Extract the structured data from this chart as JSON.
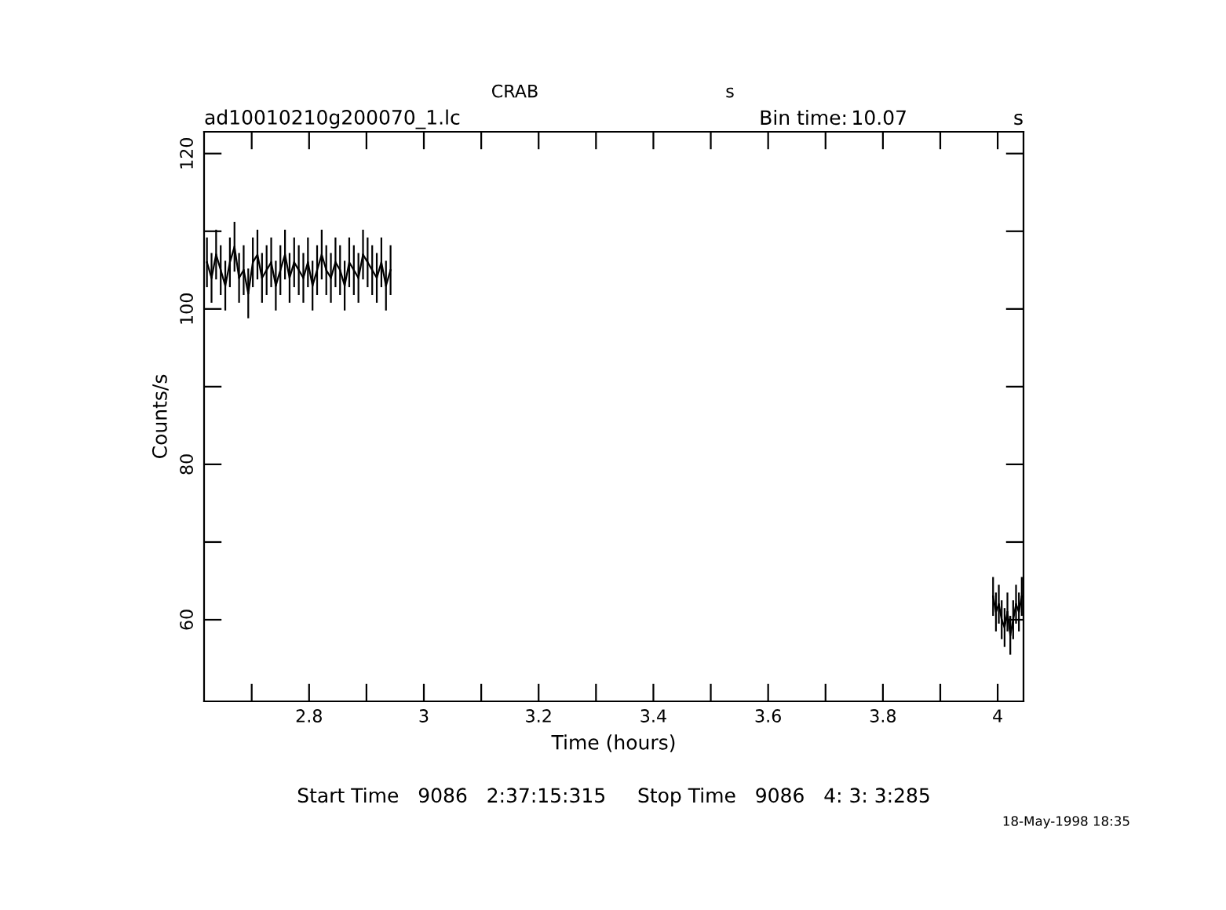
{
  "chart_data": {
    "type": "line",
    "title": "CRAB",
    "subtitle": "ad10010210g200070_1.lc",
    "xlabel": "Time (hours)",
    "ylabel": "Counts/s",
    "annotations": [
      "s",
      "Bin time:",
      "10.07",
      "s",
      "Start Time   9086   2:37:15:315     Stop Time   9086   4: 3: 3:285",
      "18-May-1998 18:35"
    ],
    "xlim": [
      2.617,
      4.045
    ],
    "ylim": [
      49.5,
      122.8
    ],
    "xticks": [
      {
        "value": 2.7,
        "label": null
      },
      2.8,
      {
        "value": 2.9,
        "label": null
      },
      3,
      {
        "value": 3.1,
        "label": null
      },
      3.2,
      {
        "value": 3.3,
        "label": null
      },
      3.4,
      {
        "value": 3.5,
        "label": null
      },
      3.6,
      {
        "value": 3.7,
        "label": null
      },
      3.8,
      {
        "value": 3.9,
        "label": null
      },
      4
    ],
    "yticks": [
      60,
      {
        "value": 70,
        "label": null
      },
      80,
      {
        "value": 90,
        "label": null
      },
      100,
      {
        "value": 110,
        "label": null
      },
      120
    ],
    "marker": "none",
    "legend": false,
    "grid": false,
    "series": [
      {
        "color": "#000000",
        "x": [
          2.622,
          2.63,
          2.638,
          2.646,
          2.654,
          2.662,
          2.67,
          2.678,
          2.686,
          2.694,
          2.702,
          2.71,
          2.718,
          2.726,
          2.734,
          2.742,
          2.75,
          2.758,
          2.766,
          2.774,
          2.782,
          2.79,
          2.798,
          2.806,
          2.814,
          2.822,
          2.83,
          2.838,
          2.846,
          2.854,
          2.862,
          2.87,
          2.878,
          2.886,
          2.894,
          2.902,
          2.91,
          2.918,
          2.926,
          2.934,
          2.942
        ],
        "values": [
          106,
          104,
          107,
          105,
          103,
          106,
          108,
          104,
          105,
          102,
          106,
          107,
          104,
          105,
          106,
          103,
          105,
          107,
          104,
          106,
          105,
          104,
          106,
          103,
          105,
          107,
          105,
          104,
          106,
          105,
          103,
          106,
          105,
          104,
          107,
          106,
          105,
          104,
          106,
          103,
          105
        ],
        "errors": [
          3.2,
          3.2,
          3.2,
          3.2,
          3.2,
          3.2,
          3.2,
          3.2,
          3.2,
          3.2,
          3.2,
          3.2,
          3.2,
          3.2,
          3.2,
          3.2,
          3.2,
          3.2,
          3.2,
          3.2,
          3.2,
          3.2,
          3.2,
          3.2,
          3.2,
          3.2,
          3.2,
          3.2,
          3.2,
          3.2,
          3.2,
          3.2,
          3.2,
          3.2,
          3.2,
          3.2,
          3.2,
          3.2,
          3.2,
          3.2,
          3.2
        ],
        "xerrors": [
          0.0014,
          0.0014,
          0.0014,
          0.0014,
          0.0014,
          0.0014,
          0.0014,
          0.0014,
          0.0014,
          0.0014,
          0.0014,
          0.0014,
          0.0014,
          0.0014,
          0.0014,
          0.0014,
          0.0014,
          0.0014,
          0.0014,
          0.0014,
          0.0014,
          0.0014,
          0.0014,
          0.0014,
          0.0014,
          0.0014,
          0.0014,
          0.0014,
          0.0014,
          0.0014,
          0.0014,
          0.0014,
          0.0014,
          0.0014,
          0.0014,
          0.0014,
          0.0014,
          0.0014,
          0.0014,
          0.0014,
          0.0014
        ]
      },
      {
        "color": "#000000",
        "x": [
          3.992,
          3.997,
          4.002,
          4.007,
          4.012,
          4.017,
          4.022,
          4.027,
          4.032,
          4.037,
          4.042
        ],
        "values": [
          63,
          61,
          62,
          60,
          59,
          61,
          58,
          60,
          62,
          61,
          63
        ],
        "errors": [
          2.5,
          2.5,
          2.5,
          2.5,
          2.5,
          2.5,
          2.5,
          2.5,
          2.5,
          2.5,
          2.5
        ],
        "xerrors": [
          0.0014,
          0.0014,
          0.0014,
          0.0014,
          0.0014,
          0.0014,
          0.0014,
          0.0014,
          0.0014,
          0.0014,
          0.0014
        ]
      }
    ]
  }
}
